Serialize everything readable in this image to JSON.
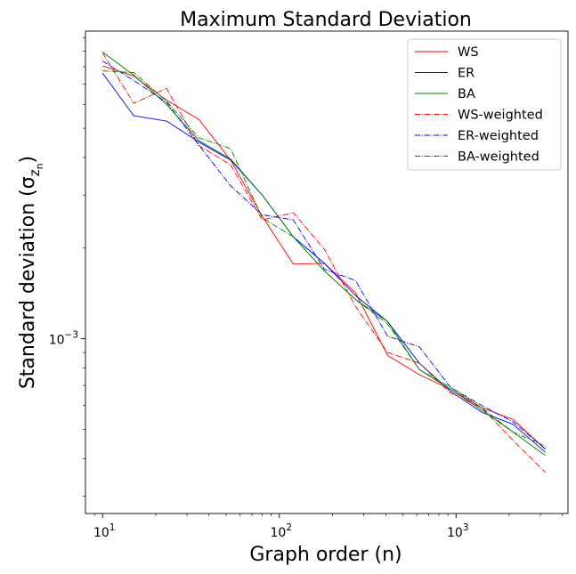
{
  "chart_data": {
    "type": "line",
    "title": "Maximum Standard Deviation",
    "xlabel": "Graph order (n)",
    "ylabel": "Standard deviation (σ",
    "ylabel_sub": "z",
    "ylabel_subsub": "n",
    "ylabel_close": ")",
    "x_scale": "log",
    "y_scale": "log",
    "xlim": [
      8.0,
      4300
    ],
    "ylim": [
      0.000263,
      0.0105
    ],
    "x_ticks": [
      {
        "value": 10,
        "base": "10",
        "exp": "1"
      },
      {
        "value": 100,
        "base": "10",
        "exp": "2"
      },
      {
        "value": 1000,
        "base": "10",
        "exp": "3"
      }
    ],
    "y_ticks": [
      {
        "value": 0.001,
        "base": "10",
        "exp": "−3"
      }
    ],
    "x_minor_ticks": [
      9,
      20,
      30,
      40,
      50,
      60,
      70,
      80,
      90,
      200,
      300,
      400,
      500,
      600,
      700,
      800,
      900,
      2000,
      3000,
      4000
    ],
    "y_minor_ticks": [
      0.0003,
      0.0004,
      0.0005,
      0.0006,
      0.0007,
      0.0008,
      0.0009,
      0.002,
      0.003,
      0.004,
      0.005,
      0.006,
      0.007,
      0.008,
      0.009,
      0.01
    ],
    "grid": false,
    "legend_position": "top-right",
    "x": [
      10,
      15,
      23,
      35,
      53,
      80,
      120,
      180,
      270,
      410,
      620,
      930,
      1400,
      2100,
      3200
    ],
    "series": [
      {
        "name": "WS",
        "color": "#ff0000",
        "dash": "solid",
        "values": [
          0.00805,
          0.00745,
          0.0062,
          0.00535,
          0.00392,
          0.00255,
          0.00177,
          0.00178,
          0.00142,
          0.00088,
          0.00076,
          0.00068,
          0.00059,
          0.00054,
          0.00043
        ]
      },
      {
        "name": "ER",
        "color": "#0000ff",
        "dash": "solid",
        "values": [
          0.00762,
          0.0055,
          0.00528,
          0.0045,
          0.00392,
          0.003,
          0.00218,
          0.00178,
          0.00139,
          0.00114,
          0.00083,
          0.00067,
          0.00057,
          0.00052,
          0.00042
        ]
      },
      {
        "name": "BA",
        "color": "#008000",
        "dash": "solid",
        "values": [
          0.00895,
          0.0075,
          0.006,
          0.00455,
          0.00395,
          0.003,
          0.00218,
          0.00168,
          0.00135,
          0.00114,
          0.00079,
          0.00068,
          0.00058,
          0.00049,
          0.00041
        ]
      },
      {
        "name": "WS-weighted",
        "color": "#ff0000",
        "dash": "dashdot",
        "values": [
          0.0089,
          0.00605,
          0.00678,
          0.00438,
          0.00378,
          0.00248,
          0.00262,
          0.00198,
          0.00128,
          0.0009,
          0.00083,
          0.00066,
          0.00059,
          0.00046,
          0.00036
        ]
      },
      {
        "name": "ER-weighted",
        "color": "#0000ff",
        "dash": "dashdot",
        "values": [
          0.00835,
          0.0072,
          0.0061,
          0.0044,
          0.00322,
          0.00258,
          0.00248,
          0.0017,
          0.00156,
          0.00102,
          0.00094,
          0.00069,
          0.0006,
          0.00053,
          0.00043
        ]
      },
      {
        "name": "BA-weighted",
        "color": "#008000",
        "dash": "dashdot",
        "values": [
          0.00775,
          0.00765,
          0.00615,
          0.00465,
          0.00428,
          0.00252,
          0.00218,
          0.00168,
          0.00135,
          0.00112,
          0.00079,
          0.00069,
          0.00059,
          0.00049,
          0.00044
        ]
      }
    ]
  }
}
